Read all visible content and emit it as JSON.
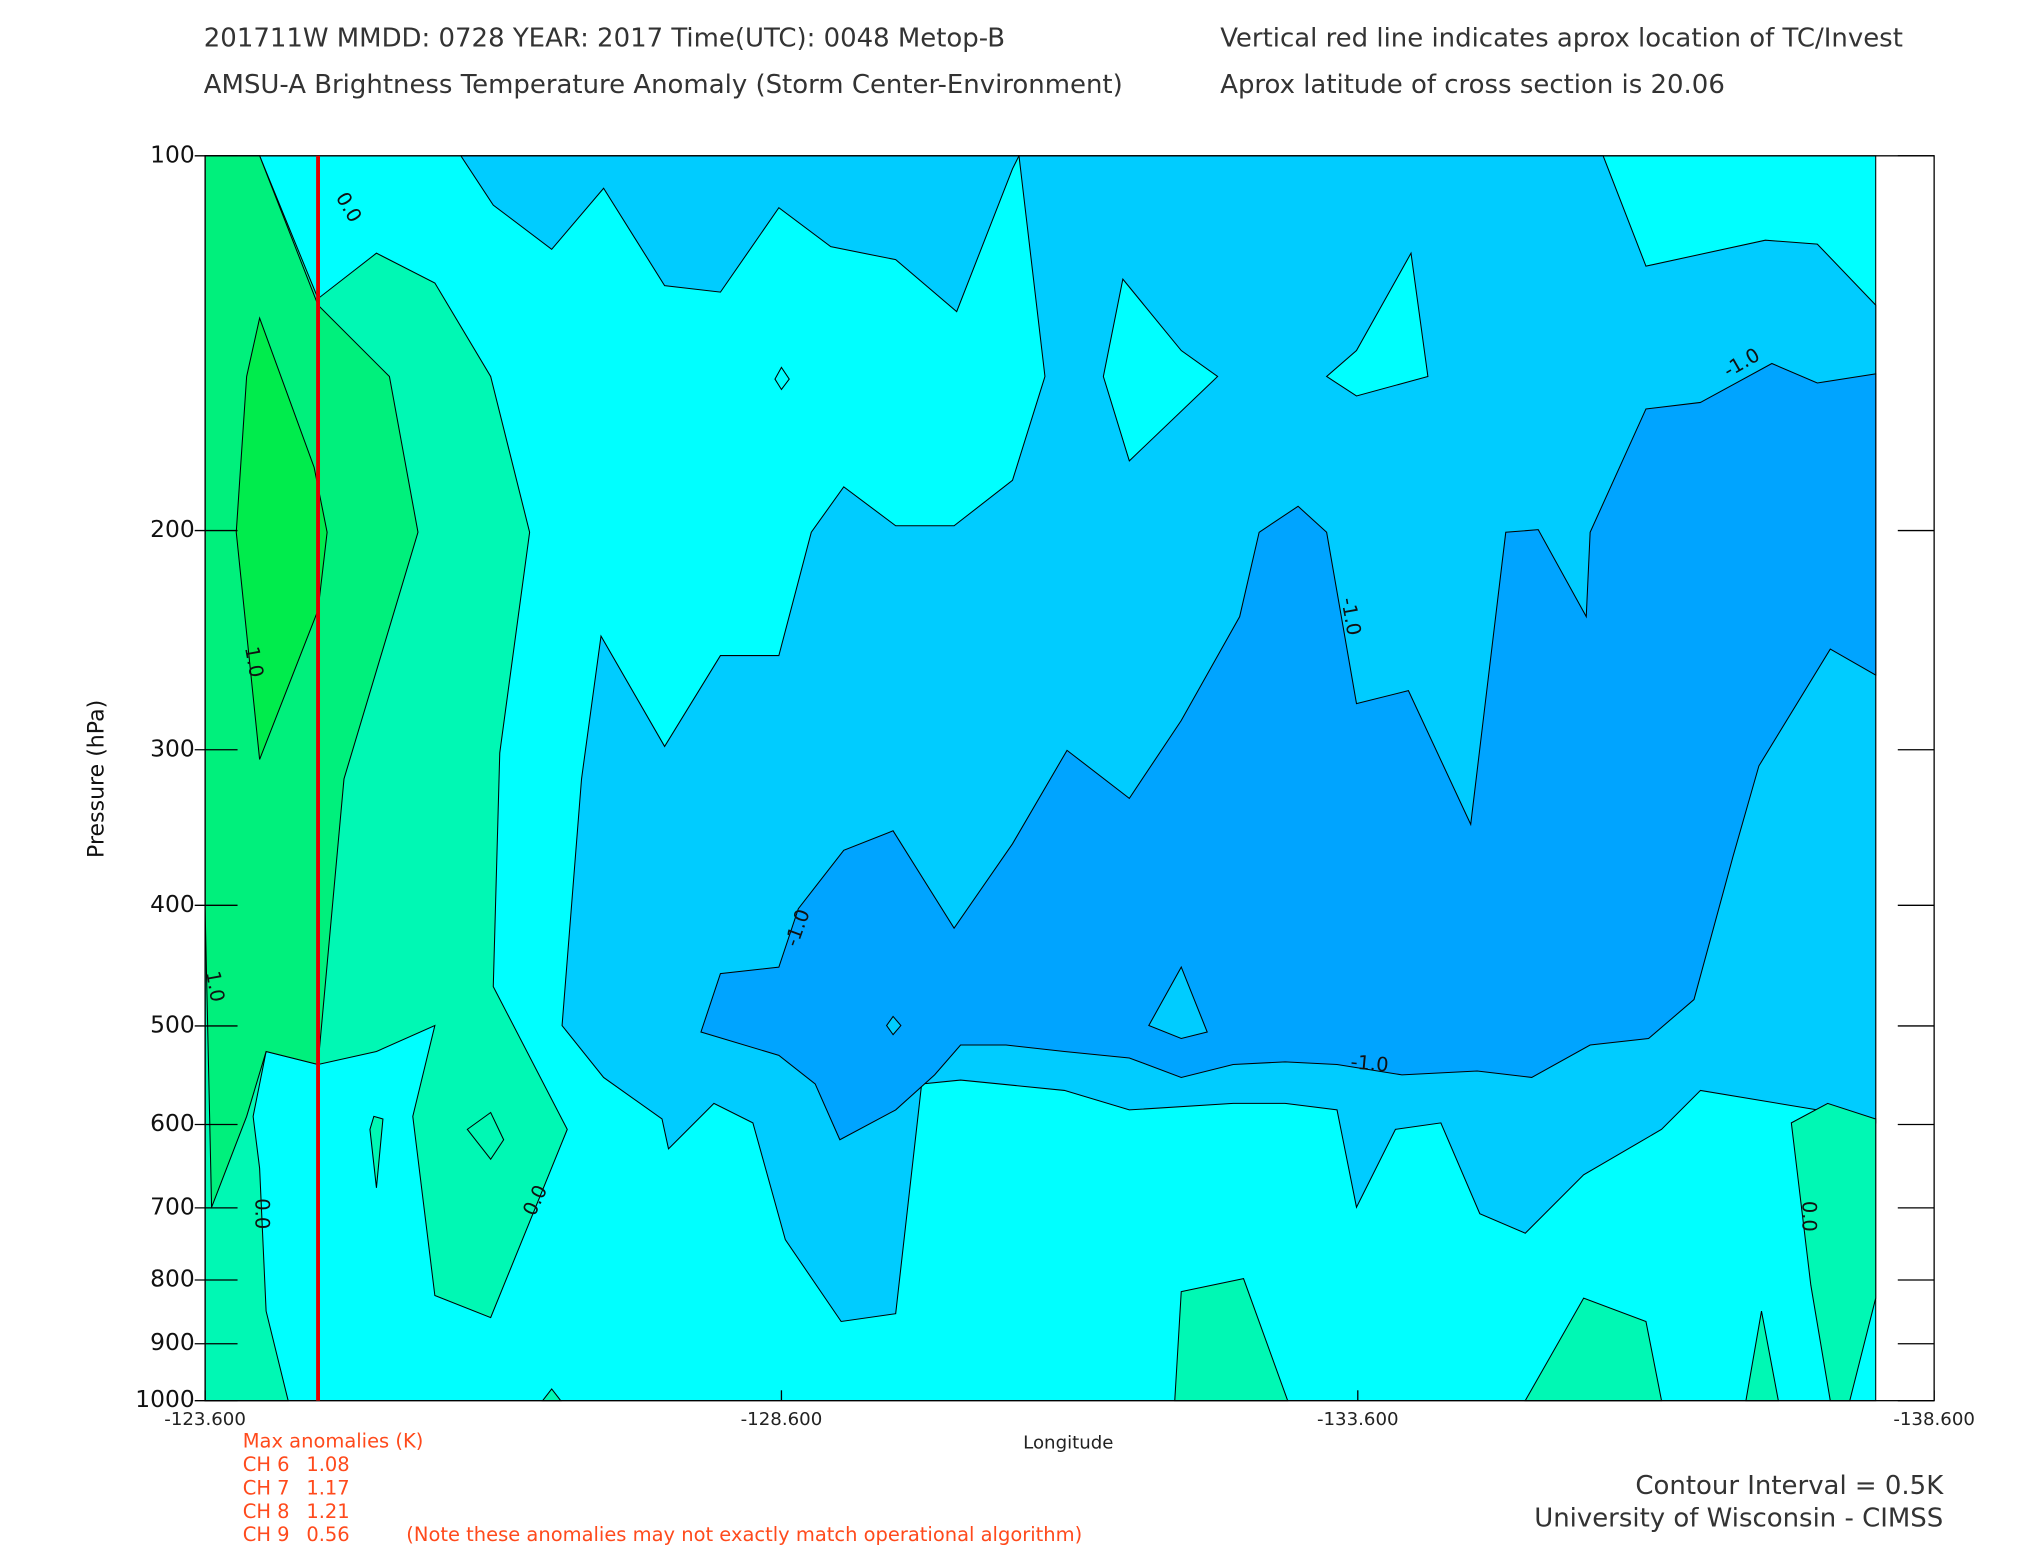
{
  "chart_data": {
    "type": "contour",
    "title": "201711W  MMDD: 0728 YEAR: 2017 Time(UTC): 0048 Metop-B",
    "subtitle": "AMSU-A Brightness Temperature Anomaly (Storm Center-Environment)",
    "annotations": [
      "Vertical red line indicates aprox location of TC/Invest",
      "Aprox latitude of cross section is 20.06"
    ],
    "xlabel": "Longitude",
    "ylabel": "Pressure (hPa)",
    "xlim": [
      -123.6,
      -138.6
    ],
    "xticks": [
      {
        "value": -123.6,
        "label": "-123.600"
      },
      {
        "value": -128.6,
        "label": "-128.600"
      },
      {
        "value": -133.6,
        "label": "-133.600"
      },
      {
        "value": -138.6,
        "label": "-138.600"
      }
    ],
    "ylim": [
      100,
      1000
    ],
    "yscale": "log",
    "yticks": [
      100,
      200,
      300,
      400,
      500,
      600,
      700,
      800,
      900,
      1000
    ],
    "levels": [
      -1.0,
      -0.5,
      0.0,
      0.5,
      1.0
    ],
    "colors": [
      "#00a4ff",
      "#00ccff",
      "#00ffff",
      "#00f8b4",
      "#00f07c",
      "#00ec4c"
    ],
    "contour_labels": [
      "0.0",
      "1.0",
      "1.0",
      "0.0",
      "0.0",
      "-1.0",
      "-1.0",
      "-1.0",
      "-1.0",
      "0.0"
    ],
    "tc_longitude": -124.58,
    "tc_color": "#e00000",
    "max_anomalies": {
      "title": "Max anomalies (K)",
      "rows": [
        {
          "channel": "CH 6",
          "value": 1.08
        },
        {
          "channel": "CH 7",
          "value": 1.17
        },
        {
          "channel": "CH 8",
          "value": 1.21
        },
        {
          "channel": "CH 9",
          "value": 0.56
        }
      ],
      "note": "(Note these anomalies may not exactly match operational algorithm)",
      "color": "#ff4a1c"
    },
    "footer": [
      "Contour Interval = 0.5K",
      "University of Wisconsin - CIMSS"
    ]
  }
}
